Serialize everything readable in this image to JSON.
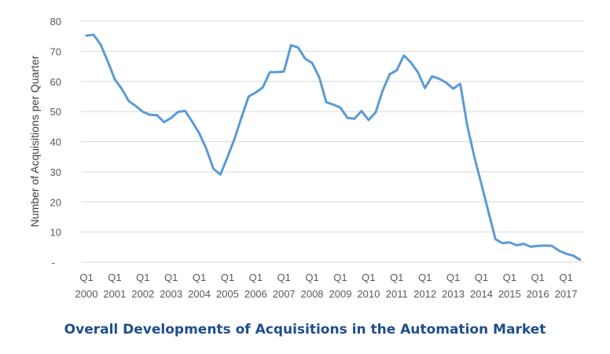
{
  "chart_data": {
    "type": "line",
    "title": "Overall Developments of Acquisitions in the Automation Market",
    "ylabel": "Number of Acquisitions per Quarter",
    "xlabel": "",
    "ylim": [
      0,
      80
    ],
    "yticks": [
      80,
      70,
      60,
      50,
      40,
      30,
      20,
      10
    ],
    "bottom_tick_label": "-",
    "grid": true,
    "x_tick_labels": [
      {
        "q": "Q1",
        "year": "2000"
      },
      {
        "q": "Q1",
        "year": "2001"
      },
      {
        "q": "Q1",
        "year": "2002"
      },
      {
        "q": "Q1",
        "year": "2003"
      },
      {
        "q": "Q1",
        "year": "2004"
      },
      {
        "q": "Q1",
        "year": "2005"
      },
      {
        "q": "Q1",
        "year": "2006"
      },
      {
        "q": "Q1",
        "year": "2007"
      },
      {
        "q": "Q1",
        "year": "2008"
      },
      {
        "q": "Q1",
        "year": "2009"
      },
      {
        "q": "Q1",
        "year": "2010"
      },
      {
        "q": "Q1",
        "year": "2011"
      },
      {
        "q": "Q1",
        "year": "2012"
      },
      {
        "q": "Q1",
        "year": "2013"
      },
      {
        "q": "Q1",
        "year": "2014"
      },
      {
        "q": "Q1",
        "year": "2015"
      },
      {
        "q": "Q1",
        "year": "2016"
      },
      {
        "q": "Q1",
        "year": "2017"
      }
    ],
    "series": [
      {
        "color": "#5b9bd5",
        "x": [
          "2000 Q1",
          "2000 Q2",
          "2000 Q3",
          "2000 Q4",
          "2001 Q1",
          "2001 Q2",
          "2001 Q3",
          "2001 Q4",
          "2002 Q1",
          "2002 Q2",
          "2002 Q3",
          "2002 Q4",
          "2003 Q1",
          "2003 Q2",
          "2003 Q3",
          "2003 Q4",
          "2004 Q1",
          "2004 Q2",
          "2004 Q3",
          "2004 Q4",
          "2005 Q1",
          "2005 Q2",
          "2005 Q3",
          "2005 Q4",
          "2006 Q1",
          "2006 Q2",
          "2006 Q3",
          "2006 Q4",
          "2007 Q1",
          "2007 Q2",
          "2007 Q3",
          "2007 Q4",
          "2008 Q1",
          "2008 Q2",
          "2008 Q3",
          "2008 Q4",
          "2009 Q1",
          "2009 Q2",
          "2009 Q3",
          "2009 Q4",
          "2010 Q1",
          "2010 Q2",
          "2010 Q3",
          "2010 Q4",
          "2011 Q1",
          "2011 Q2",
          "2011 Q3",
          "2011 Q4",
          "2012 Q1",
          "2012 Q2",
          "2012 Q3",
          "2012 Q4",
          "2013 Q1",
          "2013 Q2",
          "2013 Q3",
          "2013 Q4",
          "2014 Q1",
          "2014 Q2",
          "2014 Q3",
          "2014 Q4",
          "2015 Q1",
          "2015 Q2",
          "2015 Q3",
          "2015 Q4",
          "2016 Q1",
          "2016 Q2",
          "2016 Q3",
          "2016 Q4",
          "2017 Q1",
          "2017 Q2",
          "2017 Q3"
        ],
        "values": [
          75.2,
          75.5,
          72.3,
          66.8,
          60.8,
          57.5,
          53.5,
          51.8,
          49.9,
          48.9,
          48.8,
          46.5,
          47.9,
          49.9,
          50.2,
          46.6,
          42.8,
          37.6,
          31.0,
          29.1,
          34.9,
          41.0,
          48.2,
          55.0,
          56.3,
          58.0,
          63.1,
          63.1,
          63.3,
          72.0,
          71.3,
          67.6,
          66.1,
          61.4,
          53.1,
          52.3,
          51.3,
          47.9,
          47.6,
          50.2,
          47.2,
          49.7,
          57.0,
          62.4,
          63.7,
          68.6,
          66.3,
          63.0,
          57.8,
          61.7,
          60.9,
          59.6,
          57.6,
          59.2,
          45.2,
          35.0,
          25.9,
          16.7,
          7.6,
          6.3,
          6.6,
          5.6,
          6.1,
          5.1,
          5.4,
          5.5,
          5.4,
          3.8,
          2.8,
          2.2,
          0.8
        ]
      }
    ]
  }
}
